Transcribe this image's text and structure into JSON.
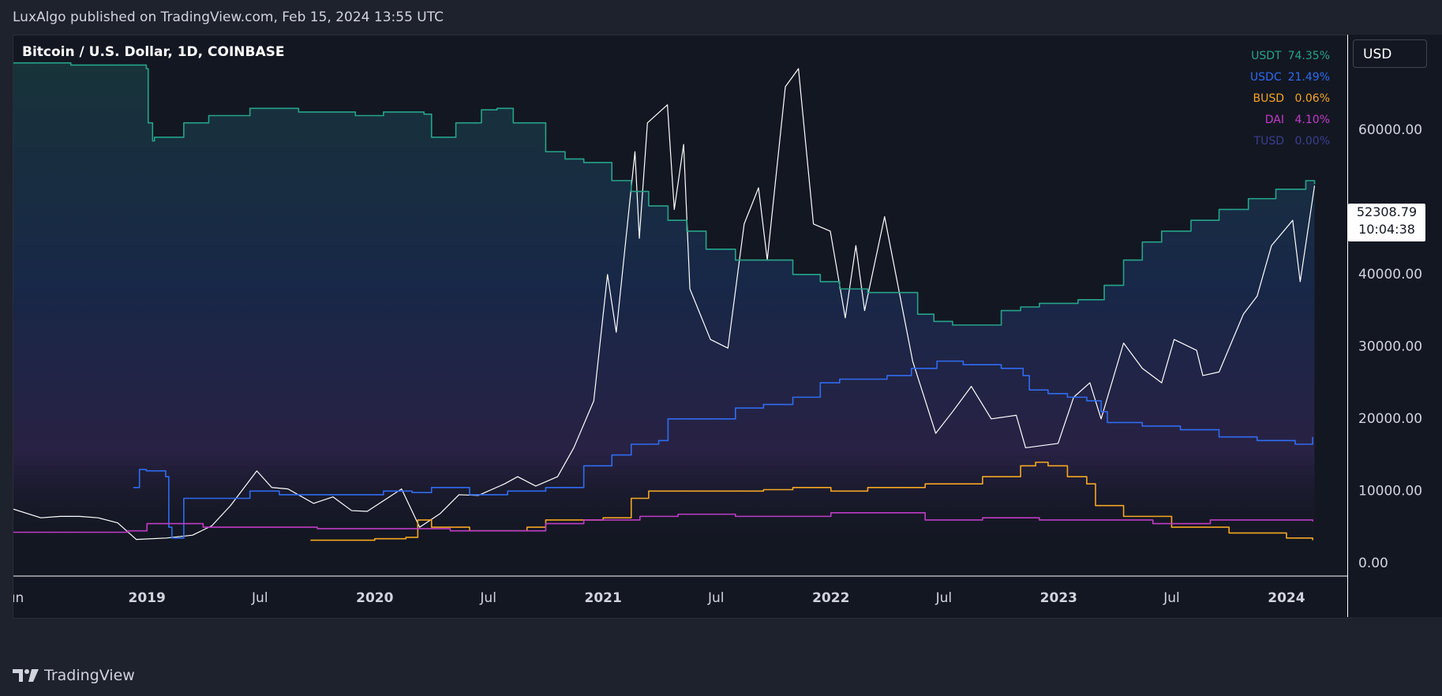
{
  "header": {
    "published_text": "LuxAlgo published on TradingView.com, Feb 15, 2024 13:55 UTC"
  },
  "symbol": {
    "title": "Bitcoin / U.S. Dollar, 1D, COINBASE"
  },
  "currency_button": "USD",
  "price_tag": {
    "price": "52308.79",
    "countdown": "10:04:38"
  },
  "brand": {
    "name": "TradingView"
  },
  "legend": [
    {
      "name": "USDT",
      "value": "74.35%",
      "color": "#26a48a"
    },
    {
      "name": "USDC",
      "value": "21.49%",
      "color": "#2f6cf0"
    },
    {
      "name": "BUSD",
      "value": "0.06%",
      "color": "#f5a623"
    },
    {
      "name": "DAI",
      "value": "4.10%",
      "color": "#c03cc6"
    },
    {
      "name": "TUSD",
      "value": "0.00%",
      "color": "#3a3f8f"
    }
  ],
  "chart_data": {
    "type": "line",
    "title": "Bitcoin / U.S. Dollar, 1D, COINBASE",
    "ylim": [
      -1000,
      72000
    ],
    "y_ticks": [
      0,
      10000,
      20000,
      30000,
      40000,
      50000,
      60000,
      70000
    ],
    "y_tick_labels": [
      "0.00",
      "10000.00",
      "20000.00",
      "30000.00",
      "40000.00",
      "",
      "60000.00",
      "70000.00"
    ],
    "x_range": [
      "2018-06-01",
      "2024-04-10"
    ],
    "x_ticks": [
      {
        "label": "Jun",
        "date": "2018-06-01",
        "bold": false
      },
      {
        "label": "2019",
        "date": "2019-01-01",
        "bold": true
      },
      {
        "label": "Jul",
        "date": "2019-07-01",
        "bold": false
      },
      {
        "label": "2020",
        "date": "2020-01-01",
        "bold": true
      },
      {
        "label": "Jul",
        "date": "2020-07-01",
        "bold": false
      },
      {
        "label": "2021",
        "date": "2021-01-01",
        "bold": true
      },
      {
        "label": "Jul",
        "date": "2021-07-01",
        "bold": false
      },
      {
        "label": "2022",
        "date": "2022-01-01",
        "bold": true
      },
      {
        "label": "Jul",
        "date": "2022-07-01",
        "bold": false
      },
      {
        "label": "2023",
        "date": "2023-01-01",
        "bold": true
      },
      {
        "label": "Jul",
        "date": "2023-07-01",
        "bold": false
      },
      {
        "label": "2024",
        "date": "2024-01-01",
        "bold": true
      }
    ],
    "last_price": 52308.79,
    "series": [
      {
        "name": "BTCUSD",
        "color": "#ffffff",
        "points": [
          [
            "2018-06-01",
            7500
          ],
          [
            "2018-07-15",
            6300
          ],
          [
            "2018-08-15",
            6500
          ],
          [
            "2018-09-15",
            6500
          ],
          [
            "2018-10-15",
            6300
          ],
          [
            "2018-11-15",
            5600
          ],
          [
            "2018-12-15",
            3300
          ],
          [
            "2019-02-01",
            3500
          ],
          [
            "2019-03-15",
            3900
          ],
          [
            "2019-04-15",
            5200
          ],
          [
            "2019-05-15",
            8000
          ],
          [
            "2019-06-26",
            12800
          ],
          [
            "2019-07-20",
            10500
          ],
          [
            "2019-08-15",
            10300
          ],
          [
            "2019-09-25",
            8300
          ],
          [
            "2019-10-26",
            9200
          ],
          [
            "2019-11-25",
            7300
          ],
          [
            "2019-12-20",
            7200
          ],
          [
            "2020-02-13",
            10300
          ],
          [
            "2020-03-13",
            5000
          ],
          [
            "2020-04-15",
            6900
          ],
          [
            "2020-05-15",
            9500
          ],
          [
            "2020-06-15",
            9400
          ],
          [
            "2020-07-27",
            11000
          ],
          [
            "2020-08-17",
            12000
          ],
          [
            "2020-09-15",
            10700
          ],
          [
            "2020-10-20",
            12000
          ],
          [
            "2020-11-15",
            16000
          ],
          [
            "2020-12-17",
            22500
          ],
          [
            "2021-01-08",
            40000
          ],
          [
            "2021-01-22",
            32000
          ],
          [
            "2021-02-21",
            57000
          ],
          [
            "2021-02-28",
            45000
          ],
          [
            "2021-03-13",
            61000
          ],
          [
            "2021-04-14",
            63500
          ],
          [
            "2021-04-25",
            49000
          ],
          [
            "2021-05-10",
            58000
          ],
          [
            "2021-05-20",
            38000
          ],
          [
            "2021-06-22",
            31000
          ],
          [
            "2021-07-20",
            29800
          ],
          [
            "2021-08-15",
            47000
          ],
          [
            "2021-09-07",
            52000
          ],
          [
            "2021-09-21",
            42000
          ],
          [
            "2021-10-20",
            66000
          ],
          [
            "2021-11-10",
            68500
          ],
          [
            "2021-12-04",
            47000
          ],
          [
            "2021-12-31",
            46000
          ],
          [
            "2022-01-24",
            34000
          ],
          [
            "2022-02-10",
            44000
          ],
          [
            "2022-02-24",
            35000
          ],
          [
            "2022-03-28",
            48000
          ],
          [
            "2022-05-12",
            28000
          ],
          [
            "2022-06-18",
            18000
          ],
          [
            "2022-07-15",
            21000
          ],
          [
            "2022-08-14",
            24500
          ],
          [
            "2022-09-15",
            20000
          ],
          [
            "2022-10-25",
            20500
          ],
          [
            "2022-11-09",
            16000
          ],
          [
            "2022-12-31",
            16600
          ],
          [
            "2023-01-25",
            23000
          ],
          [
            "2023-02-20",
            25000
          ],
          [
            "2023-03-10",
            20000
          ],
          [
            "2023-04-15",
            30500
          ],
          [
            "2023-05-15",
            27000
          ],
          [
            "2023-06-15",
            25000
          ],
          [
            "2023-07-05",
            31000
          ],
          [
            "2023-08-10",
            29500
          ],
          [
            "2023-08-20",
            26000
          ],
          [
            "2023-09-15",
            26500
          ],
          [
            "2023-10-24",
            34500
          ],
          [
            "2023-11-15",
            37000
          ],
          [
            "2023-12-08",
            44000
          ],
          [
            "2024-01-11",
            47500
          ],
          [
            "2024-01-23",
            39000
          ],
          [
            "2024-02-15",
            52300
          ]
        ]
      },
      {
        "name": "USDT",
        "color": "#26a48a",
        "points": [
          [
            "2018-06-01",
            69300
          ],
          [
            "2018-09-01",
            69000
          ],
          [
            "2018-12-31",
            68500
          ],
          [
            "2019-01-03",
            61000
          ],
          [
            "2019-01-10",
            58500
          ],
          [
            "2019-01-13",
            59000
          ],
          [
            "2019-02-28",
            59000
          ],
          [
            "2019-03-01",
            61000
          ],
          [
            "2019-04-10",
            62000
          ],
          [
            "2019-05-20",
            62000
          ],
          [
            "2019-06-15",
            63000
          ],
          [
            "2019-09-01",
            62500
          ],
          [
            "2019-12-01",
            62000
          ],
          [
            "2020-01-15",
            62500
          ],
          [
            "2020-03-01",
            62500
          ],
          [
            "2020-03-20",
            62200
          ],
          [
            "2020-04-01",
            59000
          ],
          [
            "2020-05-10",
            61000
          ],
          [
            "2020-06-20",
            62800
          ],
          [
            "2020-07-15",
            63000
          ],
          [
            "2020-08-10",
            61000
          ],
          [
            "2020-10-01",
            57000
          ],
          [
            "2020-11-01",
            56000
          ],
          [
            "2020-12-01",
            55500
          ],
          [
            "2021-01-15",
            53000
          ],
          [
            "2021-02-15",
            51500
          ],
          [
            "2021-03-15",
            49500
          ],
          [
            "2021-04-15",
            47500
          ],
          [
            "2021-05-15",
            46000
          ],
          [
            "2021-06-15",
            43500
          ],
          [
            "2021-08-01",
            42000
          ],
          [
            "2021-09-15",
            42000
          ],
          [
            "2021-11-01",
            40000
          ],
          [
            "2021-12-15",
            39000
          ],
          [
            "2022-01-15",
            38000
          ],
          [
            "2022-03-01",
            37500
          ],
          [
            "2022-04-01",
            37500
          ],
          [
            "2022-05-20",
            34500
          ],
          [
            "2022-06-15",
            33500
          ],
          [
            "2022-07-15",
            33000
          ],
          [
            "2022-09-01",
            33000
          ],
          [
            "2022-10-01",
            35000
          ],
          [
            "2022-11-01",
            35500
          ],
          [
            "2022-12-01",
            36000
          ],
          [
            "2023-02-01",
            36500
          ],
          [
            "2023-03-15",
            38500
          ],
          [
            "2023-04-15",
            42000
          ],
          [
            "2023-05-15",
            44500
          ],
          [
            "2023-06-15",
            46000
          ],
          [
            "2023-08-01",
            47500
          ],
          [
            "2023-09-15",
            49000
          ],
          [
            "2023-11-01",
            50500
          ],
          [
            "2023-12-15",
            51800
          ],
          [
            "2024-02-01",
            53000
          ],
          [
            "2024-02-15",
            52500
          ]
        ]
      },
      {
        "name": "USDC",
        "color": "#2f6cf0",
        "points": [
          [
            "2018-12-10",
            10500
          ],
          [
            "2018-12-20",
            13000
          ],
          [
            "2018-12-31",
            12800
          ],
          [
            "2019-01-31",
            12000
          ],
          [
            "2019-02-05",
            5000
          ],
          [
            "2019-02-10",
            3500
          ],
          [
            "2019-03-01",
            9000
          ],
          [
            "2019-04-10",
            9000
          ],
          [
            "2019-06-15",
            10000
          ],
          [
            "2019-08-01",
            9500
          ],
          [
            "2019-10-01",
            9500
          ],
          [
            "2019-12-01",
            9500
          ],
          [
            "2020-01-15",
            10000
          ],
          [
            "2020-03-01",
            9800
          ],
          [
            "2020-04-01",
            10500
          ],
          [
            "2020-06-01",
            9500
          ],
          [
            "2020-08-01",
            10000
          ],
          [
            "2020-10-01",
            10500
          ],
          [
            "2020-12-01",
            13500
          ],
          [
            "2021-01-15",
            15000
          ],
          [
            "2021-02-15",
            16500
          ],
          [
            "2021-03-31",
            17000
          ],
          [
            "2021-04-15",
            20000
          ],
          [
            "2021-06-15",
            20000
          ],
          [
            "2021-08-01",
            21500
          ],
          [
            "2021-09-15",
            22000
          ],
          [
            "2021-11-01",
            23000
          ],
          [
            "2021-12-15",
            25000
          ],
          [
            "2022-01-15",
            25500
          ],
          [
            "2022-04-01",
            26000
          ],
          [
            "2022-05-10",
            27000
          ],
          [
            "2022-06-20",
            28000
          ],
          [
            "2022-08-01",
            27500
          ],
          [
            "2022-10-01",
            27000
          ],
          [
            "2022-11-05",
            26000
          ],
          [
            "2022-11-15",
            24000
          ],
          [
            "2022-12-15",
            23500
          ],
          [
            "2023-01-15",
            23000
          ],
          [
            "2023-02-15",
            22500
          ],
          [
            "2023-03-10",
            21000
          ],
          [
            "2023-03-20",
            19500
          ],
          [
            "2023-05-15",
            19000
          ],
          [
            "2023-07-15",
            18500
          ],
          [
            "2023-09-15",
            17500
          ],
          [
            "2023-11-15",
            17000
          ],
          [
            "2024-01-15",
            16500
          ],
          [
            "2024-02-12",
            17500
          ]
        ]
      },
      {
        "name": "BUSD",
        "color": "#f5a623",
        "points": [
          [
            "2019-09-20",
            3200
          ],
          [
            "2020-01-01",
            3400
          ],
          [
            "2020-02-20",
            3600
          ],
          [
            "2020-03-10",
            6000
          ],
          [
            "2020-04-01",
            5000
          ],
          [
            "2020-06-01",
            4500
          ],
          [
            "2020-09-01",
            5000
          ],
          [
            "2020-10-01",
            6000
          ],
          [
            "2020-12-01",
            6000
          ],
          [
            "2021-01-01",
            6300
          ],
          [
            "2021-02-15",
            9000
          ],
          [
            "2021-03-15",
            10000
          ],
          [
            "2021-06-15",
            10000
          ],
          [
            "2021-09-15",
            10200
          ],
          [
            "2021-11-01",
            10500
          ],
          [
            "2022-01-01",
            10000
          ],
          [
            "2022-03-01",
            10500
          ],
          [
            "2022-06-01",
            11000
          ],
          [
            "2022-09-01",
            12000
          ],
          [
            "2022-11-01",
            13500
          ],
          [
            "2022-11-25",
            14000
          ],
          [
            "2022-12-15",
            13500
          ],
          [
            "2023-01-15",
            12000
          ],
          [
            "2023-02-15",
            11000
          ],
          [
            "2023-03-01",
            8000
          ],
          [
            "2023-04-15",
            6500
          ],
          [
            "2023-07-01",
            5000
          ],
          [
            "2023-10-01",
            4200
          ],
          [
            "2024-01-01",
            3500
          ],
          [
            "2024-02-12",
            3200
          ]
        ]
      },
      {
        "name": "DAI",
        "color": "#c03cc6",
        "points": [
          [
            "2018-06-01",
            4300
          ],
          [
            "2018-09-01",
            4300
          ],
          [
            "2018-12-01",
            4500
          ],
          [
            "2019-01-01",
            5500
          ],
          [
            "2019-03-01",
            5500
          ],
          [
            "2019-04-01",
            5000
          ],
          [
            "2019-07-01",
            5000
          ],
          [
            "2019-10-01",
            4800
          ],
          [
            "2019-12-01",
            4800
          ],
          [
            "2020-03-01",
            4800
          ],
          [
            "2020-05-01",
            4500
          ],
          [
            "2020-09-01",
            4500
          ],
          [
            "2020-10-01",
            5500
          ],
          [
            "2020-12-01",
            6000
          ],
          [
            "2021-03-01",
            6500
          ],
          [
            "2021-05-01",
            6800
          ],
          [
            "2021-08-01",
            6500
          ],
          [
            "2021-11-01",
            6500
          ],
          [
            "2022-01-01",
            7000
          ],
          [
            "2022-04-01",
            7000
          ],
          [
            "2022-06-01",
            6000
          ],
          [
            "2022-09-01",
            6300
          ],
          [
            "2022-12-01",
            6000
          ],
          [
            "2023-03-01",
            6000
          ],
          [
            "2023-06-01",
            5500
          ],
          [
            "2023-09-01",
            6000
          ],
          [
            "2023-12-01",
            6000
          ],
          [
            "2024-02-12",
            5800
          ]
        ]
      }
    ]
  }
}
